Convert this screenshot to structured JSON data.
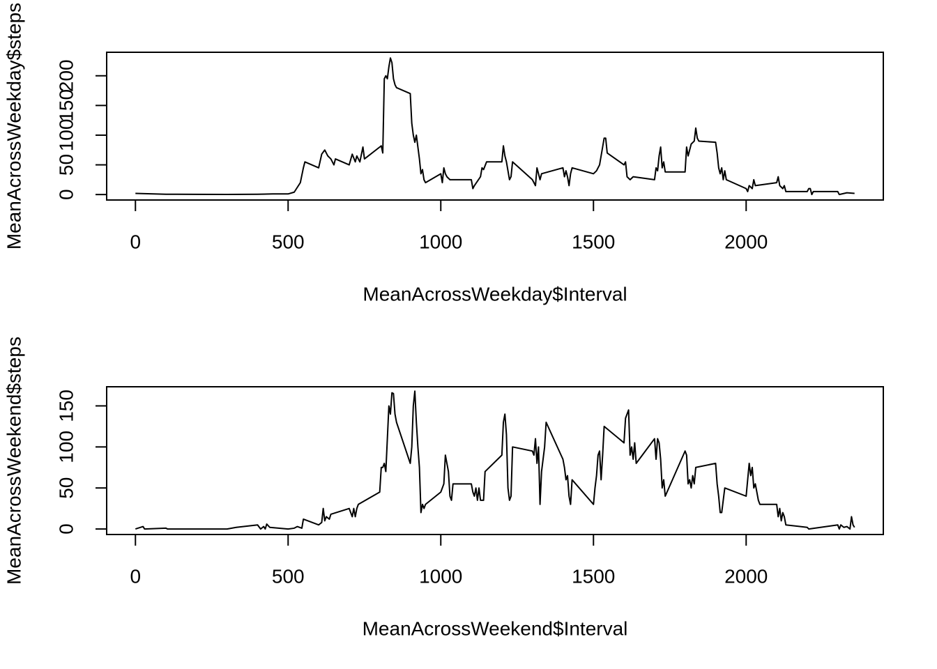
{
  "chart_data": [
    {
      "type": "line",
      "color": "#000000",
      "xlabel": "MeanAcrossWeekday$Interval",
      "ylabel": "MeanAcrossWeekday$steps",
      "xlim": [
        -94.2,
        2449.2
      ],
      "ylim": [
        -9.2,
        239.6
      ],
      "xticks": [
        0,
        500,
        1000,
        1500,
        2000
      ],
      "yticks": [
        0,
        50,
        100,
        150,
        200
      ],
      "x": [
        0,
        100,
        200,
        300,
        400,
        450,
        500,
        520,
        540,
        550,
        555,
        600,
        610,
        620,
        630,
        640,
        650,
        655,
        700,
        710,
        720,
        725,
        735,
        745,
        750,
        800,
        805,
        810,
        815,
        820,
        825,
        830,
        835,
        840,
        845,
        850,
        855,
        900,
        905,
        910,
        915,
        920,
        925,
        930,
        935,
        940,
        945,
        950,
        1000,
        1005,
        1010,
        1015,
        1020,
        1030,
        1100,
        1105,
        1110,
        1130,
        1135,
        1140,
        1150,
        1200,
        1205,
        1210,
        1215,
        1220,
        1225,
        1230,
        1235,
        1300,
        1310,
        1315,
        1320,
        1325,
        1330,
        1400,
        1405,
        1410,
        1415,
        1420,
        1425,
        1430,
        1500,
        1510,
        1520,
        1530,
        1535,
        1540,
        1545,
        1600,
        1605,
        1610,
        1620,
        1630,
        1700,
        1705,
        1710,
        1715,
        1720,
        1725,
        1730,
        1735,
        1800,
        1805,
        1810,
        1820,
        1830,
        1835,
        1840,
        1845,
        1900,
        1905,
        1910,
        1915,
        1920,
        1925,
        1930,
        1935,
        2000,
        2005,
        2010,
        2020,
        2025,
        2030,
        2100,
        2105,
        2110,
        2120,
        2125,
        2130,
        2200,
        2205,
        2210,
        2215,
        2220,
        2300,
        2305,
        2330,
        2355
      ],
      "values": [
        2,
        0.5,
        0.3,
        0.2,
        0.5,
        1,
        1,
        4,
        20,
        45,
        55,
        45,
        68,
        75,
        65,
        60,
        50,
        60,
        50,
        68,
        55,
        65,
        55,
        80,
        60,
        80,
        82,
        70,
        195,
        200,
        195,
        215,
        230,
        222,
        195,
        185,
        180,
        170,
        120,
        100,
        88,
        100,
        80,
        60,
        35,
        42,
        25,
        20,
        35,
        20,
        45,
        35,
        30,
        25,
        25,
        10,
        15,
        30,
        45,
        42,
        55,
        55,
        82,
        65,
        55,
        40,
        25,
        30,
        55,
        25,
        15,
        45,
        35,
        25,
        35,
        45,
        30,
        40,
        30,
        15,
        35,
        45,
        35,
        40,
        50,
        80,
        95,
        95,
        70,
        50,
        55,
        30,
        25,
        30,
        25,
        45,
        40,
        65,
        80,
        45,
        55,
        38,
        38,
        80,
        65,
        85,
        90,
        112,
        95,
        90,
        88,
        70,
        45,
        35,
        45,
        25,
        40,
        25,
        10,
        5,
        15,
        10,
        25,
        15,
        20,
        30,
        15,
        10,
        15,
        5,
        5,
        10,
        10,
        0,
        5,
        5,
        0,
        3,
        2
      ]
    },
    {
      "type": "line",
      "color": "#000000",
      "xlabel": "MeanAcrossWeekend$Interval",
      "ylabel": "MeanAcrossWeekend$steps",
      "xlim": [
        -94.2,
        2449.2
      ],
      "ylim": [
        -6.7,
        173.3
      ],
      "xticks": [
        0,
        500,
        1000,
        1500,
        2000
      ],
      "yticks": [
        0,
        50,
        100,
        150
      ],
      "x": [
        0,
        25,
        30,
        100,
        105,
        200,
        300,
        330,
        400,
        410,
        420,
        425,
        430,
        440,
        500,
        520,
        530,
        545,
        550,
        600,
        610,
        615,
        620,
        625,
        635,
        640,
        700,
        710,
        715,
        720,
        725,
        730,
        800,
        805,
        810,
        815,
        820,
        825,
        830,
        835,
        840,
        845,
        850,
        855,
        900,
        905,
        910,
        915,
        920,
        925,
        930,
        935,
        940,
        945,
        950,
        1000,
        1005,
        1010,
        1015,
        1020,
        1025,
        1030,
        1035,
        1040,
        1100,
        1105,
        1110,
        1115,
        1120,
        1125,
        1130,
        1140,
        1145,
        1200,
        1205,
        1210,
        1215,
        1220,
        1225,
        1230,
        1235,
        1300,
        1305,
        1310,
        1315,
        1320,
        1325,
        1330,
        1340,
        1345,
        1400,
        1405,
        1410,
        1415,
        1420,
        1425,
        1430,
        1500,
        1505,
        1510,
        1515,
        1520,
        1525,
        1530,
        1535,
        1600,
        1605,
        1610,
        1615,
        1620,
        1625,
        1630,
        1635,
        1640,
        1700,
        1705,
        1710,
        1715,
        1720,
        1725,
        1730,
        1735,
        1800,
        1805,
        1810,
        1815,
        1820,
        1825,
        1830,
        1835,
        1900,
        1905,
        1910,
        1915,
        1920,
        1925,
        1930,
        2000,
        2005,
        2010,
        2015,
        2020,
        2025,
        2030,
        2035,
        2040,
        2045,
        2100,
        2105,
        2110,
        2115,
        2120,
        2125,
        2130,
        2200,
        2205,
        2300,
        2305,
        2310,
        2320,
        2330,
        2340,
        2345,
        2350,
        2355
      ],
      "values": [
        0,
        3,
        0,
        1,
        0,
        0,
        0,
        2,
        5,
        0,
        3,
        0,
        6,
        2,
        0,
        1,
        3,
        1,
        12,
        5,
        8,
        25,
        10,
        15,
        12,
        18,
        25,
        15,
        25,
        15,
        25,
        30,
        45,
        75,
        75,
        80,
        70,
        110,
        150,
        140,
        166,
        165,
        140,
        130,
        80,
        100,
        150,
        168,
        130,
        100,
        75,
        20,
        30,
        25,
        30,
        45,
        50,
        55,
        90,
        80,
        70,
        40,
        35,
        55,
        55,
        45,
        40,
        50,
        35,
        50,
        35,
        35,
        70,
        90,
        130,
        140,
        115,
        50,
        35,
        40,
        100,
        95,
        90,
        110,
        80,
        100,
        30,
        70,
        100,
        130,
        85,
        75,
        60,
        65,
        40,
        30,
        60,
        30,
        50,
        65,
        90,
        95,
        60,
        90,
        125,
        105,
        135,
        140,
        145,
        90,
        100,
        85,
        105,
        80,
        110,
        85,
        110,
        105,
        85,
        50,
        60,
        40,
        95,
        90,
        55,
        60,
        50,
        65,
        55,
        75,
        80,
        55,
        40,
        20,
        20,
        35,
        50,
        40,
        60,
        80,
        65,
        75,
        50,
        55,
        45,
        35,
        30,
        30,
        15,
        25,
        10,
        20,
        15,
        5,
        2,
        0,
        5,
        0,
        5,
        2,
        3,
        0,
        15,
        5,
        2
      ]
    }
  ]
}
